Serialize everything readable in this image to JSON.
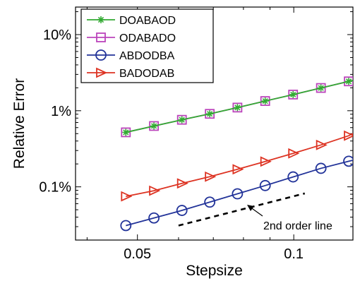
{
  "chart_data": {
    "type": "line",
    "xlabel": "Stepsize",
    "ylabel": "Relative Error",
    "xscale": "log",
    "yscale": "log",
    "xlim": [
      0.038,
      0.13
    ],
    "ylim": [
      0.0002,
      0.23
    ],
    "grid": false,
    "legend_position": "top-left",
    "x_ticks": [
      {
        "value": 0.05,
        "label": "0.05"
      },
      {
        "value": 0.1,
        "label": "0.1"
      }
    ],
    "y_ticks": [
      {
        "value": 0.001,
        "label": "0.1%"
      },
      {
        "value": 0.01,
        "label": "1%"
      },
      {
        "value": 0.1,
        "label": "10%"
      }
    ],
    "x": [
      0.0475,
      0.0538,
      0.0609,
      0.0689,
      0.0779,
      0.0881,
      0.0997,
      0.1128,
      0.1276,
      0.1444
    ],
    "series": [
      {
        "name": "DOABAOD",
        "color": "#33aa33",
        "marker": "asterisk",
        "values": [
          0.0052,
          0.0063,
          0.0076,
          0.0091,
          0.011,
          0.0134,
          0.0163,
          0.0199,
          0.0243,
          0.03
        ]
      },
      {
        "name": "ODABADO",
        "color": "#bb44bb",
        "marker": "square",
        "values": [
          0.0052,
          0.0063,
          0.0076,
          0.0091,
          0.011,
          0.0134,
          0.0163,
          0.0199,
          0.0243,
          0.03
        ]
      },
      {
        "name": "ABDODBA",
        "color": "#223399",
        "marker": "circle",
        "values": [
          0.00031,
          0.00039,
          0.00049,
          0.00063,
          0.00081,
          0.00104,
          0.00135,
          0.00175,
          0.00217,
          0.00265
        ]
      },
      {
        "name": "BADODAB",
        "color": "#dd3322",
        "marker": "triangle-right",
        "values": [
          0.00075,
          0.00089,
          0.00111,
          0.00136,
          0.0017,
          0.00215,
          0.00275,
          0.00355,
          0.0047,
          0.0071
        ]
      }
    ],
    "reference_line": {
      "label": "2nd order line",
      "style": "dashed",
      "color": "#000000",
      "x": [
        0.06,
        0.105
      ],
      "y": [
        0.00031,
        0.00082
      ]
    }
  }
}
